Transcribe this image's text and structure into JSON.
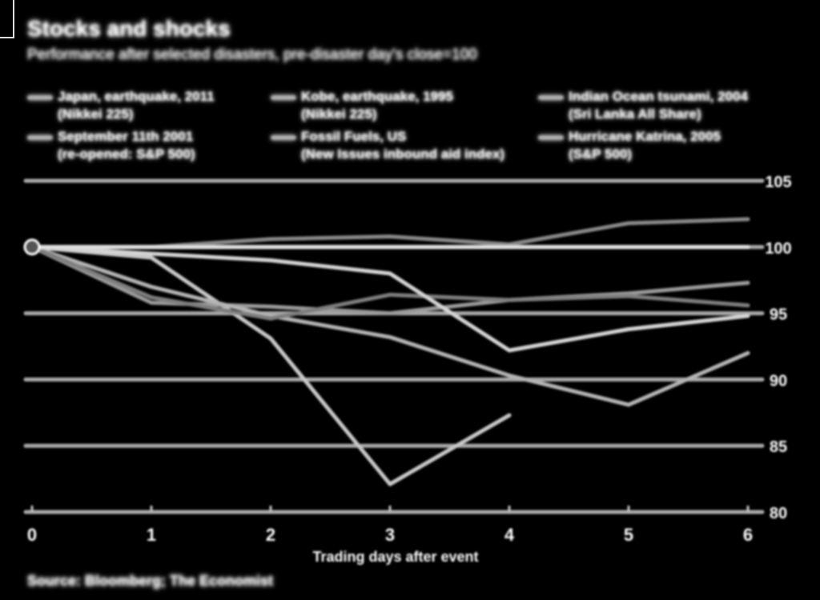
{
  "chart_data": {
    "type": "line",
    "title": "Stocks and shocks",
    "subtitle": "Performance after selected disasters, pre-disaster day's close=100",
    "xlabel": "Trading days after event",
    "ylabel": "",
    "x": [
      0,
      1,
      2,
      3,
      4,
      5,
      6
    ],
    "xlim": [
      0,
      6
    ],
    "ylim": [
      80,
      105
    ],
    "yticks": [
      80,
      85,
      90,
      95,
      100,
      105
    ],
    "grid": true,
    "legend_position": "top",
    "y_axis_side": "right",
    "series": [
      {
        "name": "Japan, earthquake, 2011",
        "detail": "(Nikkei 225)",
        "color": "#c8c8c8",
        "values": [
          100,
          99.2,
          93.1,
          82.1,
          87.3,
          null,
          null
        ]
      },
      {
        "name": "September 11th 2001",
        "detail": "(re-opened: S&P 500)",
        "color": "#9a9a9a",
        "values": [
          100,
          95.8,
          95.5,
          95.0,
          96.0,
          96.5,
          97.3
        ]
      },
      {
        "name": "Kobe, earthquake, 1995",
        "detail": "(Nikkei 225)",
        "color": "#b4b4b4",
        "values": [
          100,
          97.0,
          94.8,
          93.2,
          90.3,
          88.1,
          92.0
        ]
      },
      {
        "name": "Fossil Fuels, US",
        "detail": "(New Issues inbound aid index)",
        "color": "#7e7e7e",
        "values": [
          100,
          96.2,
          94.6,
          96.4,
          96.0,
          96.3,
          95.6
        ]
      },
      {
        "name": "Indian Ocean tsunami, 2004",
        "detail": "(Sri Lanka All Share)",
        "color": "#d4d4d4",
        "values": [
          100,
          99.5,
          99.0,
          98.0,
          92.2,
          93.8,
          94.8
        ]
      },
      {
        "name": "Hurricane Katrina, 2005",
        "detail": "(S&P 500)",
        "color": "#888888",
        "values": [
          100,
          100,
          100.6,
          100.8,
          100.2,
          101.8,
          102.1
        ]
      },
      {
        "name": "",
        "detail": "",
        "color": "#e0e0e0",
        "values": [
          100,
          100,
          100,
          100,
          100,
          100,
          100
        ]
      }
    ]
  },
  "source": "Source: Bloomberg; The Economist"
}
